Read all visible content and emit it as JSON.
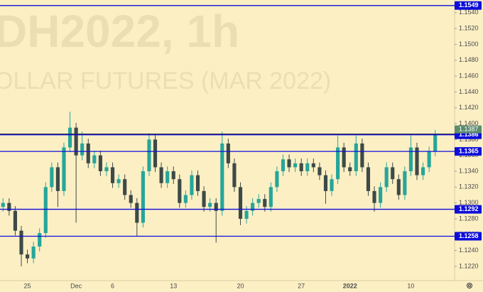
{
  "chart_data": {
    "type": "candlestick",
    "watermark": [
      "DH2022, 1h",
      "OLLAR FUTURES (MAR 2022)"
    ],
    "categories": [
      null,
      null,
      null,
      null,
      "25",
      null,
      null,
      null,
      null,
      null,
      null,
      null,
      "Dec",
      null,
      null,
      null,
      null,
      null,
      "6",
      null,
      null,
      null,
      null,
      null,
      null,
      null,
      null,
      null,
      "13",
      null,
      null,
      null,
      null,
      null,
      null,
      null,
      null,
      null,
      null,
      "20",
      null,
      null,
      null,
      null,
      null,
      null,
      null,
      null,
      null,
      "27",
      null,
      null,
      null,
      null,
      null,
      null,
      null,
      "2022",
      null,
      null,
      null,
      null,
      null,
      null,
      null,
      null,
      null,
      "10",
      null,
      null,
      null,
      null
    ],
    "open": [
      1.1295,
      1.13,
      1.129,
      1.1265,
      1.1235,
      1.123,
      1.1245,
      1.1262,
      1.132,
      1.1345,
      1.1315,
      1.137,
      1.1395,
      1.136,
      1.1375,
      1.135,
      1.136,
      1.134,
      1.1345,
      1.1325,
      1.133,
      1.131,
      1.13,
      1.1275,
      1.134,
      1.138,
      1.1345,
      1.1325,
      1.134,
      1.133,
      1.13,
      1.131,
      1.1335,
      1.1315,
      1.1295,
      1.13,
      1.129,
      1.1375,
      1.135,
      1.132,
      1.128,
      1.129,
      1.13,
      1.1305,
      1.1295,
      1.132,
      1.134,
      1.1355,
      1.1345,
      1.135,
      1.134,
      1.135,
      1.1345,
      1.1335,
      1.1315,
      1.133,
      1.137,
      1.1345,
      1.134,
      1.1375,
      1.1345,
      1.1315,
      1.13,
      1.132,
      1.1345,
      1.133,
      1.131,
      1.134,
      1.137,
      1.1335,
      1.1345,
      1.1365
    ],
    "high": [
      1.1306,
      1.1306,
      1.1296,
      1.1271,
      1.1241,
      1.1251,
      1.1268,
      1.1326,
      1.1351,
      1.1351,
      1.1376,
      1.1415,
      1.1401,
      1.139,
      1.1381,
      1.1366,
      1.1366,
      1.1351,
      1.1351,
      1.1336,
      1.1336,
      1.1316,
      1.1306,
      1.1346,
      1.1388,
      1.1386,
      1.1351,
      1.1346,
      1.1346,
      1.1336,
      1.1316,
      1.1341,
      1.1341,
      1.1321,
      1.1306,
      1.1306,
      1.139,
      1.1381,
      1.1356,
      1.1326,
      1.1296,
      1.1306,
      1.1311,
      1.1311,
      1.1326,
      1.1346,
      1.1361,
      1.1361,
      1.1356,
      1.1356,
      1.1356,
      1.1356,
      1.1351,
      1.1341,
      1.1336,
      1.1385,
      1.1376,
      1.1351,
      1.1385,
      1.1381,
      1.1351,
      1.1321,
      1.1326,
      1.1351,
      1.1351,
      1.1336,
      1.1346,
      1.1385,
      1.1376,
      1.1351,
      1.1371,
      1.1392
    ],
    "low": [
      1.1289,
      1.1284,
      1.1259,
      1.122,
      1.1224,
      1.1224,
      1.1239,
      1.1256,
      1.1314,
      1.1295,
      1.1309,
      1.1364,
      1.1275,
      1.1354,
      1.1344,
      1.1344,
      1.1334,
      1.1334,
      1.1319,
      1.1319,
      1.1304,
      1.1294,
      1.1258,
      1.1269,
      1.1334,
      1.1339,
      1.1319,
      1.1319,
      1.1324,
      1.1294,
      1.1294,
      1.1304,
      1.1309,
      1.1289,
      1.1289,
      1.125,
      1.1284,
      1.1344,
      1.1314,
      1.1272,
      1.1274,
      1.1284,
      1.1294,
      1.1289,
      1.1289,
      1.1314,
      1.1334,
      1.1339,
      1.1339,
      1.1334,
      1.1334,
      1.1339,
      1.1329,
      1.1299,
      1.1309,
      1.1324,
      1.1339,
      1.1334,
      1.1334,
      1.1339,
      1.1309,
      1.1289,
      1.1294,
      1.1314,
      1.1324,
      1.1304,
      1.1304,
      1.1334,
      1.1329,
      1.1329,
      1.1339,
      1.1359
    ],
    "close": [
      1.13,
      1.129,
      1.1265,
      1.1235,
      1.123,
      1.1245,
      1.1262,
      1.132,
      1.1345,
      1.1315,
      1.137,
      1.1395,
      1.136,
      1.1375,
      1.135,
      1.136,
      1.134,
      1.1345,
      1.1325,
      1.133,
      1.131,
      1.13,
      1.1275,
      1.134,
      1.138,
      1.1345,
      1.1325,
      1.134,
      1.133,
      1.13,
      1.131,
      1.1335,
      1.1315,
      1.1295,
      1.13,
      1.129,
      1.1375,
      1.135,
      1.132,
      1.128,
      1.129,
      1.13,
      1.1305,
      1.1295,
      1.132,
      1.134,
      1.1355,
      1.1345,
      1.135,
      1.134,
      1.135,
      1.1345,
      1.1335,
      1.1315,
      1.133,
      1.137,
      1.1345,
      1.134,
      1.1375,
      1.1345,
      1.1315,
      1.13,
      1.132,
      1.1345,
      1.133,
      1.131,
      1.134,
      1.137,
      1.1335,
      1.1345,
      1.1365,
      1.1387
    ],
    "up_color": "#26a69a",
    "down_color": "#3d4a47",
    "levels": [
      {
        "value": 1.1549,
        "label": "1.1549"
      },
      {
        "value": 1.1386,
        "label": "1.1386"
      },
      {
        "value": 1.1365,
        "label": "1.1365"
      },
      {
        "value": 1.1292,
        "label": "1.1292"
      },
      {
        "value": 1.1258,
        "label": "1.1258"
      }
    ],
    "level_color": "#0d0ddb",
    "last_price": {
      "value": 1.1387,
      "label": "1.1387"
    },
    "last_color": "#5b8c6e",
    "ylim": [
      1.1202,
      1.1556
    ],
    "yticks": [
      {
        "value": 1.122,
        "label": "1.1220"
      },
      {
        "value": 1.124,
        "label": "1.1240"
      },
      {
        "value": 1.126,
        "label": "1.1260"
      },
      {
        "value": 1.128,
        "label": "1.1280"
      },
      {
        "value": 1.13,
        "label": "1.1300"
      },
      {
        "value": 1.132,
        "label": "1.1320"
      },
      {
        "value": 1.134,
        "label": "1.1340"
      },
      {
        "value": 1.136,
        "label": "1.1360"
      },
      {
        "value": 1.138,
        "label": "1.1380"
      },
      {
        "value": 1.14,
        "label": "1.1400"
      },
      {
        "value": 1.142,
        "label": "1.1420"
      },
      {
        "value": 1.144,
        "label": "1.1440"
      },
      {
        "value": 1.146,
        "label": "1.1460"
      },
      {
        "value": 1.148,
        "label": "1.1480"
      },
      {
        "value": 1.15,
        "label": "1.1500"
      },
      {
        "value": 1.152,
        "label": "1.1520"
      },
      {
        "value": 1.154,
        "label": "1.1540"
      }
    ]
  }
}
